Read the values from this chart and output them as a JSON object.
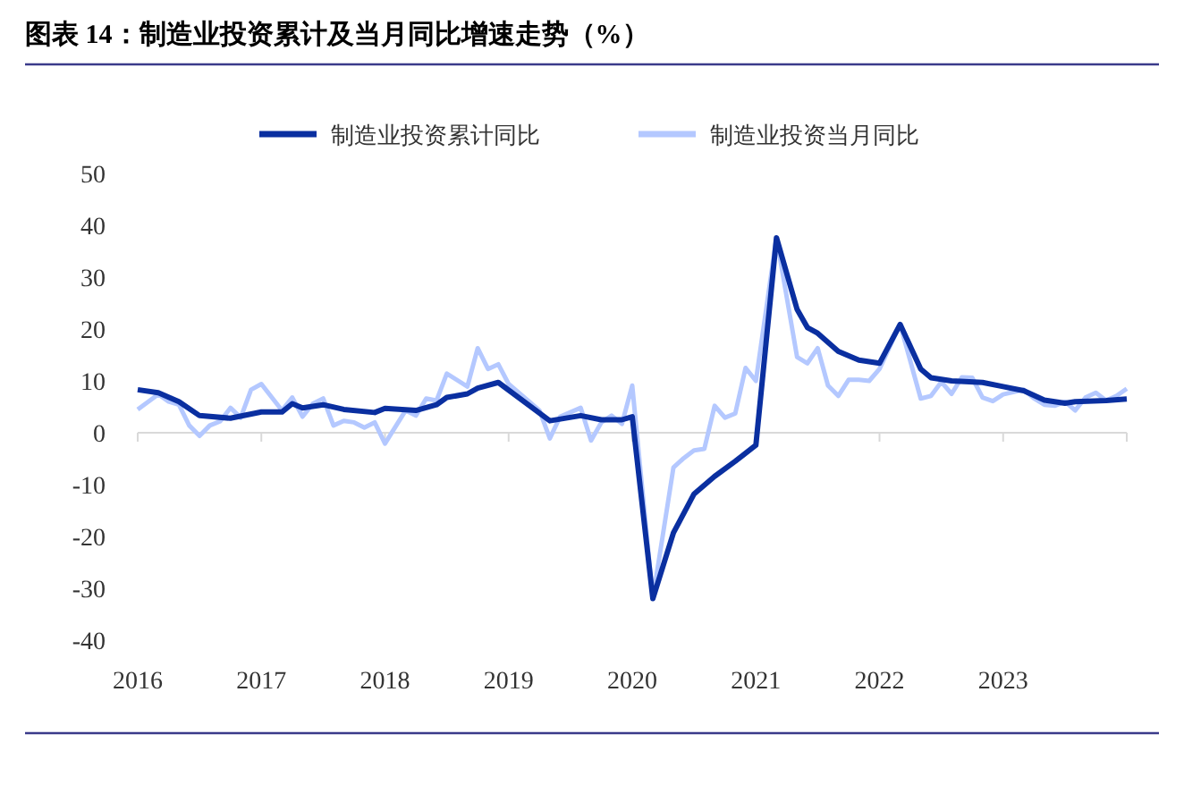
{
  "chart_data": {
    "type": "line",
    "title": "图表 14：制造业投资累计及当月同比增速走势（%）",
    "xlim": [
      "2016-01",
      "2024-01"
    ],
    "xticks": [
      {
        "value": "2016-01",
        "label": "2016"
      },
      {
        "value": "2017-01",
        "label": "2017"
      },
      {
        "value": "2018-01",
        "label": "2018"
      },
      {
        "value": "2019-01",
        "label": "2019"
      },
      {
        "value": "2020-01",
        "label": "2020"
      },
      {
        "value": "2021-01",
        "label": "2021"
      },
      {
        "value": "2022-01",
        "label": "2022"
      },
      {
        "value": "2023-01",
        "label": "2023"
      },
      {
        "value": "2024-01",
        "label": null
      }
    ],
    "ylim": [
      -40,
      50
    ],
    "yticks": [
      -40,
      -30,
      -20,
      -10,
      0,
      10,
      20,
      30,
      40,
      50
    ],
    "legend": "top",
    "marker": "none",
    "line_style": "solid",
    "series": [
      {
        "name": "制造业投资累计同比",
        "color": "#0a2fa0",
        "x": [
          "2016-01",
          "2016-03",
          "2016-05",
          "2016-07",
          "2016-10",
          "2017-01",
          "2017-03",
          "2017-04",
          "2017-05",
          "2017-07",
          "2017-09",
          "2017-12",
          "2018-01",
          "2018-04",
          "2018-06",
          "2018-07",
          "2018-09",
          "2018-10",
          "2018-12",
          "2019-05",
          "2019-08",
          "2019-10",
          "2019-12",
          "2020-01",
          "2020-03",
          "2020-05",
          "2020-07",
          "2020-09",
          "2020-11",
          "2021-01",
          "2021-03",
          "2021-05",
          "2021-06",
          "2021-07",
          "2021-09",
          "2021-11",
          "2022-01",
          "2022-03",
          "2022-05",
          "2022-06",
          "2022-08",
          "2022-11",
          "2023-01",
          "2023-03",
          "2023-05",
          "2023-07",
          "2023-08",
          "2023-11",
          "2024-01"
        ],
        "values": [
          8.3,
          7.7,
          6.0,
          3.3,
          2.8,
          4.0,
          4.0,
          5.6,
          4.8,
          5.4,
          4.5,
          3.9,
          4.7,
          4.3,
          5.4,
          6.8,
          7.5,
          8.6,
          9.7,
          2.3,
          3.3,
          2.5,
          2.5,
          3.1,
          -32,
          -19.3,
          -11.8,
          -8.4,
          -5.5,
          -2.4,
          37.6,
          23.8,
          20.3,
          19.2,
          15.7,
          14.0,
          13.4,
          20.9,
          12.3,
          10.6,
          10.0,
          9.7,
          8.9,
          8.1,
          6.3,
          5.7,
          6.0,
          6.2,
          6.5
        ]
      },
      {
        "name": "制造业投资当月同比",
        "color": "#b4c8ff",
        "x": [
          "2016-01",
          "2016-03",
          "2016-04",
          "2016-05",
          "2016-06",
          "2016-07",
          "2016-08",
          "2016-09",
          "2016-10",
          "2016-11",
          "2016-12",
          "2017-01",
          "2017-03",
          "2017-04",
          "2017-05",
          "2017-06",
          "2017-07",
          "2017-08",
          "2017-09",
          "2017-10",
          "2017-11",
          "2017-12",
          "2018-01",
          "2018-03",
          "2018-04",
          "2018-05",
          "2018-06",
          "2018-07",
          "2018-09",
          "2018-10",
          "2018-11",
          "2018-12",
          "2019-01",
          "2019-04",
          "2019-05",
          "2019-06",
          "2019-08",
          "2019-09",
          "2019-10",
          "2019-11",
          "2019-12",
          "2020-01",
          "2020-03",
          "2020-05",
          "2020-06",
          "2020-07",
          "2020-08",
          "2020-09",
          "2020-10",
          "2020-11",
          "2020-12",
          "2021-01",
          "2021-03",
          "2021-05",
          "2021-06",
          "2021-07",
          "2021-08",
          "2021-09",
          "2021-10",
          "2021-11",
          "2021-12",
          "2022-01",
          "2022-03",
          "2022-05",
          "2022-06",
          "2022-07",
          "2022-08",
          "2022-09",
          "2022-10",
          "2022-11",
          "2022-12",
          "2023-01",
          "2023-03",
          "2023-04",
          "2023-05",
          "2023-06",
          "2023-07",
          "2023-08",
          "2023-09",
          "2023-10",
          "2023-11",
          "2023-12",
          "2024-01"
        ],
        "values": [
          4.5,
          7.4,
          6.0,
          5.4,
          1.4,
          -0.6,
          1.4,
          2.2,
          4.8,
          2.9,
          8.3,
          9.4,
          4.3,
          6.8,
          3.1,
          5.6,
          6.6,
          1.4,
          2.3,
          2.0,
          1.0,
          2.0,
          -2.1,
          4.3,
          3.3,
          6.6,
          6.2,
          11.4,
          8.9,
          16.3,
          12.3,
          13.2,
          9.4,
          4.3,
          -1.1,
          3.1,
          4.8,
          -1.5,
          2.0,
          3.3,
          1.7,
          9.1,
          -32,
          -6.7,
          -4.9,
          -3.4,
          -3.1,
          5.2,
          2.9,
          3.7,
          12.5,
          10.0,
          37.6,
          14.6,
          13.4,
          16.3,
          9.1,
          7.1,
          10.2,
          10.2,
          10.0,
          12.3,
          20.9,
          6.6,
          7.1,
          9.8,
          7.5,
          10.7,
          10.6,
          6.8,
          6.1,
          7.4,
          8.3,
          6.6,
          5.4,
          5.2,
          6.0,
          4.3,
          6.8,
          7.7,
          6.2,
          7.1,
          8.5
        ]
      }
    ]
  }
}
